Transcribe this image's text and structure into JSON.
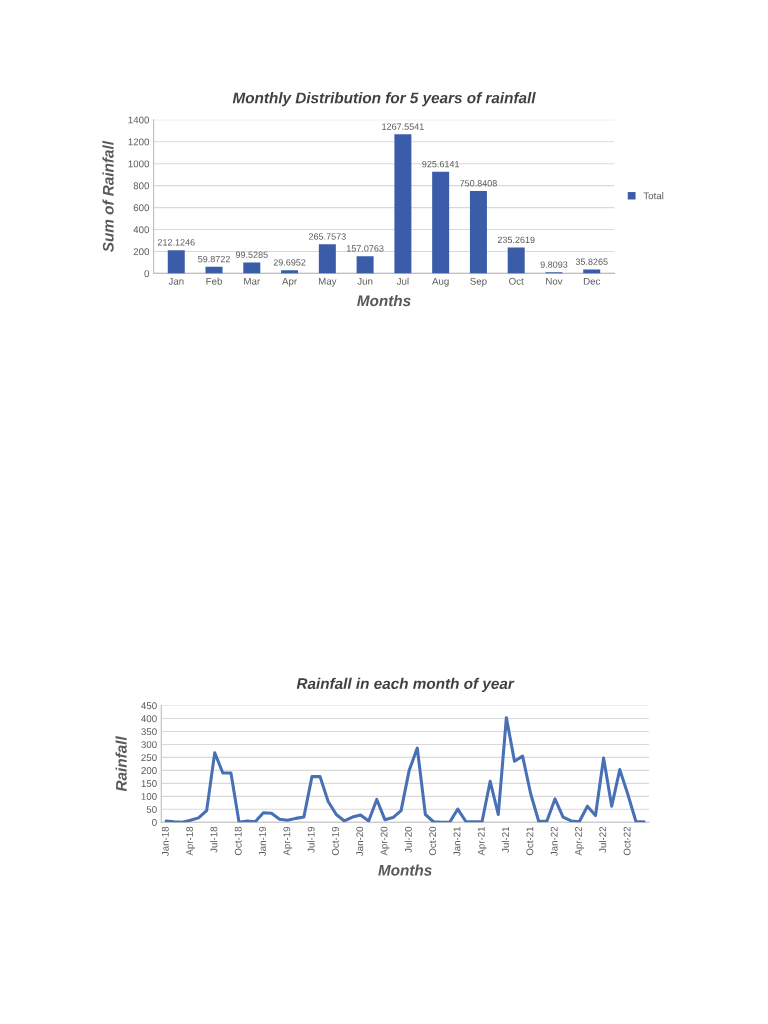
{
  "chart_data": [
    {
      "type": "bar",
      "title": "Monthly Distribution for 5 years of rainfall",
      "xlabel": "Months",
      "ylabel": "Sum of Rainfall",
      "categories": [
        "Jan",
        "Feb",
        "Mar",
        "Apr",
        "May",
        "Jun",
        "Jul",
        "Aug",
        "Sep",
        "Oct",
        "Nov",
        "Dec"
      ],
      "series": [
        {
          "name": "Total",
          "color": "#3b5ca8",
          "values": [
            212.1246,
            59.8722,
            99.5285,
            29.6952,
            265.7573,
            157.0763,
            1267.5541,
            925.6141,
            750.8408,
            235.2619,
            9.8093,
            35.8265
          ]
        }
      ],
      "ylim": [
        0,
        1400
      ],
      "yticks": [
        0,
        200,
        400,
        600,
        800,
        1000,
        1200,
        1400
      ],
      "grid": "y",
      "legend": "right",
      "data_labels": true
    },
    {
      "type": "line",
      "title": "Rainfall in each month of year",
      "xlabel": "Months",
      "ylabel": "Rainfall",
      "categories": [
        "Jan-18",
        null,
        null,
        "Apr-18",
        null,
        null,
        "Jul-18",
        null,
        null,
        "Oct-18",
        null,
        null,
        "Jan-19",
        null,
        null,
        "Apr-19",
        null,
        null,
        "Jul-19",
        null,
        null,
        "Oct-19",
        null,
        null,
        "Jan-20",
        null,
        null,
        "Apr-20",
        null,
        null,
        "Jul-20",
        null,
        null,
        "Oct-20",
        null,
        null,
        "Jan-21",
        null,
        null,
        "Apr-21",
        null,
        null,
        "Jul-21",
        null,
        null,
        "Oct-21",
        null,
        null,
        "Jan-22",
        null,
        null,
        "Apr-22",
        null,
        null,
        "Jul-22",
        null,
        null,
        "Oct-22",
        null,
        null
      ],
      "series": [
        {
          "color": "#4870b4",
          "values": [
            5,
            2,
            0,
            8,
            17,
            45,
            268,
            190,
            190,
            0,
            5,
            2,
            37,
            35,
            12,
            8,
            15,
            20,
            176,
            176,
            80,
            30,
            5,
            20,
            28,
            5,
            88,
            10,
            18,
            45,
            200,
            286,
            30,
            2,
            0,
            0,
            51,
            3,
            2,
            3,
            158,
            30,
            403,
            235,
            255,
            110,
            3,
            5,
            90,
            20,
            5,
            2,
            62,
            26,
            248,
            62,
            203,
            107,
            2,
            2
          ]
        }
      ],
      "ylim": [
        0,
        450
      ],
      "yticks": [
        0,
        50,
        100,
        150,
        200,
        250,
        300,
        350,
        400,
        450
      ],
      "grid": "y",
      "marker": "none",
      "line_style": "solid"
    }
  ]
}
